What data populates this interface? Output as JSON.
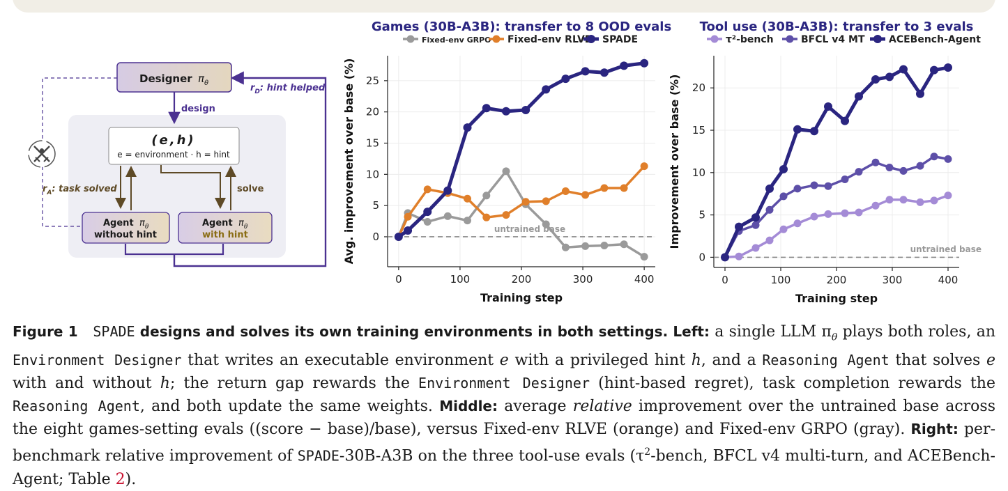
{
  "diagram": {
    "designer_label": "Designer",
    "pi_theta": "π",
    "theta_sub": "θ",
    "design_label": "design",
    "eh_label": "(e,h)",
    "eh_desc": "e = environment · h = hint",
    "agent_label": "Agent",
    "without_hint": "without hint",
    "with_hint": "with hint",
    "solve_label": "solve",
    "ra_label": "r",
    "ra_sub": "A",
    "ra_text": ": task solved",
    "rd_label": "r",
    "rd_sub": "D",
    "rd_text": ": hint helped",
    "colors": {
      "purple": "#4b3191",
      "olive": "#5e4a26",
      "designer_fill": "#cfc3df",
      "gold": "#8a6d14"
    }
  },
  "chart_data": [
    {
      "type": "line",
      "title": "Games (30B-A3B): transfer to 8 OOD evals",
      "xlabel": "Training step",
      "ylabel": "Avg. improvement over base (%)",
      "xlim": [
        -18,
        418
      ],
      "ylim": [
        -4.8,
        29
      ],
      "xticks": [
        0,
        100,
        200,
        300,
        400
      ],
      "yticks": [
        0,
        5,
        10,
        15,
        20,
        25
      ],
      "baseline_label": "untrained base",
      "grid": true,
      "legend_placement": "top",
      "series": [
        {
          "name": "Fixed-env GRPO",
          "color": "#9a9a9a",
          "x": [
            0,
            15,
            47,
            80,
            112,
            143,
            175,
            207,
            240,
            272,
            304,
            335,
            367,
            400
          ],
          "y": [
            0,
            3.8,
            2.4,
            3.3,
            2.6,
            6.6,
            10.5,
            5.2,
            2.0,
            -1.7,
            -1.5,
            -1.4,
            -1.2,
            -3.2
          ]
        },
        {
          "name": "Fixed-env RLVE",
          "color": "#e07f2a",
          "x": [
            0,
            15,
            47,
            80,
            112,
            143,
            175,
            207,
            240,
            272,
            304,
            335,
            367,
            400
          ],
          "y": [
            0,
            3.2,
            7.6,
            7.0,
            6.1,
            3.1,
            3.5,
            5.6,
            5.7,
            7.3,
            6.7,
            7.8,
            7.8,
            11.3
          ]
        },
        {
          "name": "SPADE",
          "color": "#2a2580",
          "x": [
            0,
            15,
            47,
            80,
            112,
            143,
            175,
            207,
            240,
            272,
            304,
            335,
            367,
            400
          ],
          "y": [
            0,
            1.0,
            4.0,
            7.4,
            17.5,
            20.6,
            20.1,
            20.3,
            23.6,
            25.3,
            26.5,
            26.3,
            27.4,
            27.8
          ]
        }
      ]
    },
    {
      "type": "line",
      "title": "Tool use (30B-A3B): transfer to 3 evals",
      "xlabel": "Training step",
      "ylabel": "Improvement over base (%)",
      "xlim": [
        -20,
        420
      ],
      "ylim": [
        -1.2,
        23.8
      ],
      "xticks": [
        0,
        100,
        200,
        300,
        400
      ],
      "yticks": [
        0,
        5,
        10,
        15,
        20
      ],
      "baseline_label": "untrained base",
      "grid": true,
      "legend_placement": "top",
      "series": [
        {
          "name": "τ²-bench",
          "color": "#a48bd6",
          "x": [
            0,
            25,
            55,
            80,
            105,
            130,
            160,
            185,
            215,
            240,
            270,
            295,
            320,
            350,
            375,
            400
          ],
          "y": [
            0,
            0.1,
            1.1,
            2.0,
            3.3,
            4.0,
            4.8,
            5.1,
            5.2,
            5.3,
            6.1,
            6.8,
            6.8,
            6.5,
            6.7,
            7.3
          ]
        },
        {
          "name": "BFCL v4 MT",
          "color": "#5d4fa8",
          "x": [
            0,
            25,
            55,
            80,
            105,
            130,
            160,
            185,
            215,
            240,
            270,
            295,
            320,
            350,
            375,
            400
          ],
          "y": [
            0,
            3.1,
            3.8,
            5.6,
            7.2,
            8.1,
            8.5,
            8.4,
            9.2,
            10.1,
            11.2,
            10.6,
            10.2,
            10.8,
            11.9,
            11.6
          ]
        },
        {
          "name": "ACEBench-Agent",
          "color": "#2a2580",
          "x": [
            0,
            25,
            55,
            80,
            105,
            130,
            160,
            185,
            215,
            240,
            270,
            295,
            320,
            350,
            375,
            400
          ],
          "y": [
            0,
            3.6,
            4.7,
            8.1,
            10.4,
            15.1,
            14.9,
            17.8,
            16.1,
            19.0,
            21.0,
            21.3,
            22.2,
            19.3,
            22.1,
            22.4
          ]
        }
      ]
    }
  ],
  "caption": {
    "fig_label": "Figure 1",
    "spade": "SPADE",
    "bold_title": " designs and solves its own training environments in both settings. ",
    "left_label": "Left:",
    "left_text_1": " a single LLM π",
    "left_theta": "θ",
    "left_text_2": " plays both roles, an ",
    "env_designer": "Environment Designer",
    "left_text_3": " that writes an executable environment ",
    "e_var": "e",
    "left_text_4": " with a privileged hint ",
    "h_var": "h",
    "left_text_5": ", and a ",
    "reasoning_agent": "Reasoning Agent",
    "left_text_6": " that solves ",
    "left_text_7": " with and without ",
    "left_text_8": "; the return gap rewards the ",
    "left_text_9": " (hint-based regret), task completion rewards the ",
    "left_text_10": ", and both update the same weights. ",
    "middle_label": "Middle:",
    "middle_text_1": " average ",
    "relative": "relative",
    "middle_text_2": " improvement over the untrained base across the eight games-setting evals ((score − base)/base), versus Fixed-env RLVE (orange) and Fixed-env GRPO (gray). ",
    "right_label": "Right:",
    "right_text_1": " per-benchmark relative improvement of ",
    "right_model": "-30B-A3B on the three tool-use evals (τ",
    "right_sup": "2",
    "right_text_2": "-bench, BFCL v4 multi-turn, and ACEBench-Agent; Table ",
    "table_ref": "2",
    "right_text_3": ")."
  }
}
